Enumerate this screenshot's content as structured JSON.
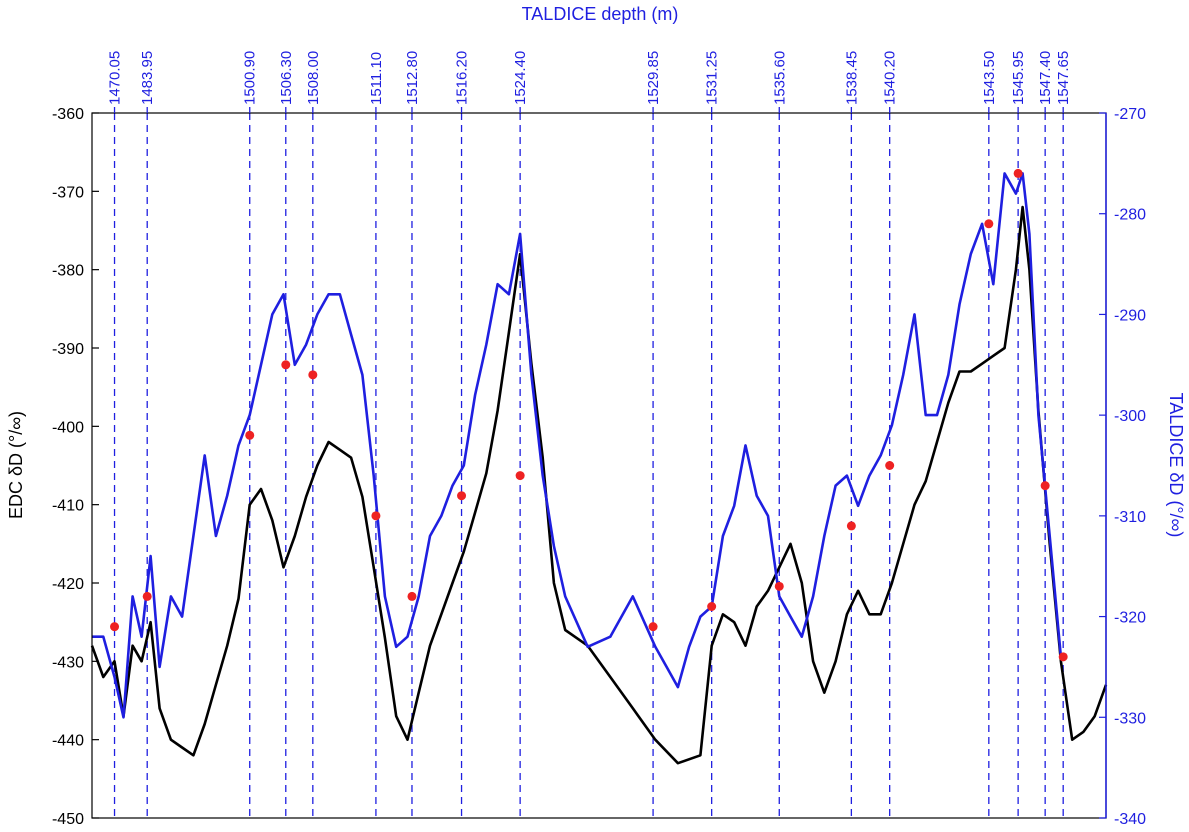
{
  "chart_data": {
    "type": "line",
    "title": "",
    "top_axis": {
      "label": "TALDICE depth (m)",
      "color": "#1f1fe0",
      "ticks": [
        {
          "label": "1470.05",
          "x": 1
        },
        {
          "label": "1483.95",
          "x": 2.45
        },
        {
          "label": "1500.90",
          "x": 7
        },
        {
          "label": "1506.30",
          "x": 8.6
        },
        {
          "label": "1508.00",
          "x": 9.8
        },
        {
          "label": "1511.10",
          "x": 12.6
        },
        {
          "label": "1512.80",
          "x": 14.2
        },
        {
          "label": "1516.20",
          "x": 16.4
        },
        {
          "label": "1524.40",
          "x": 19.0
        },
        {
          "label": "1529.85",
          "x": 24.9
        },
        {
          "label": "1531.25",
          "x": 27.5
        },
        {
          "label": "1535.60",
          "x": 30.5
        },
        {
          "label": "1538.45",
          "x": 33.7
        },
        {
          "label": "1540.20",
          "x": 35.4
        },
        {
          "label": "1543.50",
          "x": 39.8
        },
        {
          "label": "1545.95",
          "x": 41.1
        },
        {
          "label": "1547.40",
          "x": 42.3
        },
        {
          "label": "1547.65",
          "x": 43.1
        }
      ]
    },
    "x_range": [
      0,
      45
    ],
    "left_axis": {
      "label": "EDC δD (°/∞)",
      "color": "#000000",
      "ylim": [
        -450,
        -360
      ],
      "ticks": [
        "-360",
        "-370",
        "-380",
        "-390",
        "-400",
        "-410",
        "-420",
        "-430",
        "-440",
        "-450"
      ]
    },
    "right_axis": {
      "label": "TALDICE δD (°/∞)",
      "color": "#1f1fe0",
      "ylim": [
        -340,
        -270
      ],
      "ticks": [
        "-270",
        "-280",
        "-290",
        "-300",
        "-310",
        "-320",
        "-330",
        "-340"
      ]
    },
    "series": [
      {
        "color": "#000000",
        "axis": "left",
        "x": [
          0,
          0.5,
          1,
          1.4,
          1.8,
          2.2,
          2.6,
          3.0,
          3.5,
          4.0,
          4.5,
          5.0,
          5.5,
          6.0,
          6.5,
          7.0,
          7.5,
          8.0,
          8.5,
          9.0,
          9.5,
          10.0,
          10.5,
          11.0,
          11.5,
          12.0,
          12.5,
          13.0,
          13.5,
          14.0,
          14.5,
          15.0,
          15.5,
          16.0,
          16.5,
          17.0,
          17.5,
          18.0,
          18.5,
          19.0,
          19.5,
          20.0,
          20.5,
          21.0,
          22.0,
          23.0,
          24.0,
          25.0,
          26.0,
          27.0,
          27.5,
          28.0,
          28.5,
          29.0,
          29.5,
          30.0,
          30.5,
          31.0,
          31.5,
          32.0,
          32.5,
          33.0,
          33.5,
          34.0,
          34.5,
          35.0,
          35.5,
          36.0,
          36.5,
          37.0,
          37.5,
          38.0,
          38.5,
          39.0,
          39.5,
          40.0,
          40.5,
          41.0,
          41.3,
          41.6,
          42.0,
          42.5,
          43.0,
          43.5,
          44.0,
          44.5,
          45.0
        ],
        "values": [
          -428,
          -432,
          -430,
          -437,
          -428,
          -430,
          -425,
          -436,
          -440,
          -441,
          -442,
          -438,
          -433,
          -428,
          -422,
          -410,
          -408,
          -412,
          -418,
          -414,
          -409,
          -405,
          -402,
          -403,
          -404,
          -409,
          -418,
          -427,
          -437,
          -440,
          -434,
          -428,
          -424,
          -420,
          -416,
          -411,
          -406,
          -398,
          -388,
          -378,
          -392,
          -404,
          -420,
          -426,
          -428,
          -432,
          -436,
          -440,
          -443,
          -442,
          -428,
          -424,
          -425,
          -428,
          -423,
          -421,
          -418,
          -415,
          -420,
          -430,
          -434,
          -430,
          -424,
          -421,
          -424,
          -424,
          -420,
          -415,
          -410,
          -407,
          -402,
          -397,
          -393,
          -393,
          -392,
          -391,
          -390,
          -380,
          -372,
          -380,
          -398,
          -415,
          -430,
          -440,
          -439,
          -437,
          -433
        ]
      },
      {
        "color": "#1f1fe0",
        "axis": "right",
        "x": [
          0,
          0.5,
          1,
          1.4,
          1.8,
          2.2,
          2.6,
          3.0,
          3.5,
          4.0,
          4.5,
          5.0,
          5.5,
          6.0,
          6.5,
          7.0,
          7.5,
          8.0,
          8.5,
          9.0,
          9.5,
          10.0,
          10.5,
          11.0,
          11.5,
          12.0,
          12.5,
          13.0,
          13.5,
          14.0,
          14.5,
          15.0,
          15.5,
          16.0,
          16.5,
          17.0,
          17.5,
          18.0,
          18.5,
          19.0,
          19.5,
          20.0,
          20.5,
          21.0,
          22.0,
          23.0,
          24.0,
          25.0,
          25.5,
          26.0,
          26.5,
          27.0,
          27.5,
          28.0,
          28.5,
          29.0,
          29.5,
          30.0,
          30.5,
          31.0,
          31.5,
          32.0,
          32.5,
          33.0,
          33.5,
          34.0,
          34.5,
          35.0,
          35.5,
          36.0,
          36.5,
          37.0,
          37.5,
          38.0,
          38.5,
          39.0,
          39.5,
          40.0,
          40.5,
          41.0,
          41.3,
          41.6,
          42.0,
          42.5,
          43.0
        ],
        "values": [
          -322,
          -322,
          -326,
          -330,
          -318,
          -322,
          -314,
          -325,
          -318,
          -320,
          -312,
          -304,
          -312,
          -308,
          -303,
          -300,
          -295,
          -290,
          -288,
          -295,
          -293,
          -290,
          -288,
          -288,
          -292,
          -296,
          -306,
          -318,
          -323,
          -322,
          -318,
          -312,
          -310,
          -307,
          -305,
          -298,
          -293,
          -287,
          -288,
          -282,
          -296,
          -306,
          -313,
          -318,
          -323,
          -322,
          -318,
          -323,
          -325,
          -327,
          -323,
          -320,
          -319,
          -312,
          -309,
          -303,
          -308,
          -310,
          -318,
          -320,
          -322,
          -318,
          -312,
          -307,
          -306,
          -309,
          -306,
          -304,
          -301,
          -296,
          -290,
          -300,
          -300,
          -296,
          -289,
          -284,
          -281,
          -287,
          -276,
          -278,
          -276,
          -282,
          -300,
          -312,
          -324
        ]
      }
    ],
    "markers": {
      "color": "#ee2222",
      "axis": "right",
      "x": [
        1,
        2.45,
        7,
        8.6,
        9.8,
        12.6,
        14.2,
        16.4,
        19.0,
        24.9,
        27.5,
        30.5,
        33.7,
        35.4,
        39.8,
        41.1,
        42.3,
        43.1
      ],
      "values": [
        -321,
        -318,
        -302,
        -295,
        -296,
        -310,
        -318,
        -308,
        -306,
        -321,
        -319,
        -317,
        -311,
        -305,
        -281,
        -276,
        -307,
        -324
      ]
    }
  }
}
